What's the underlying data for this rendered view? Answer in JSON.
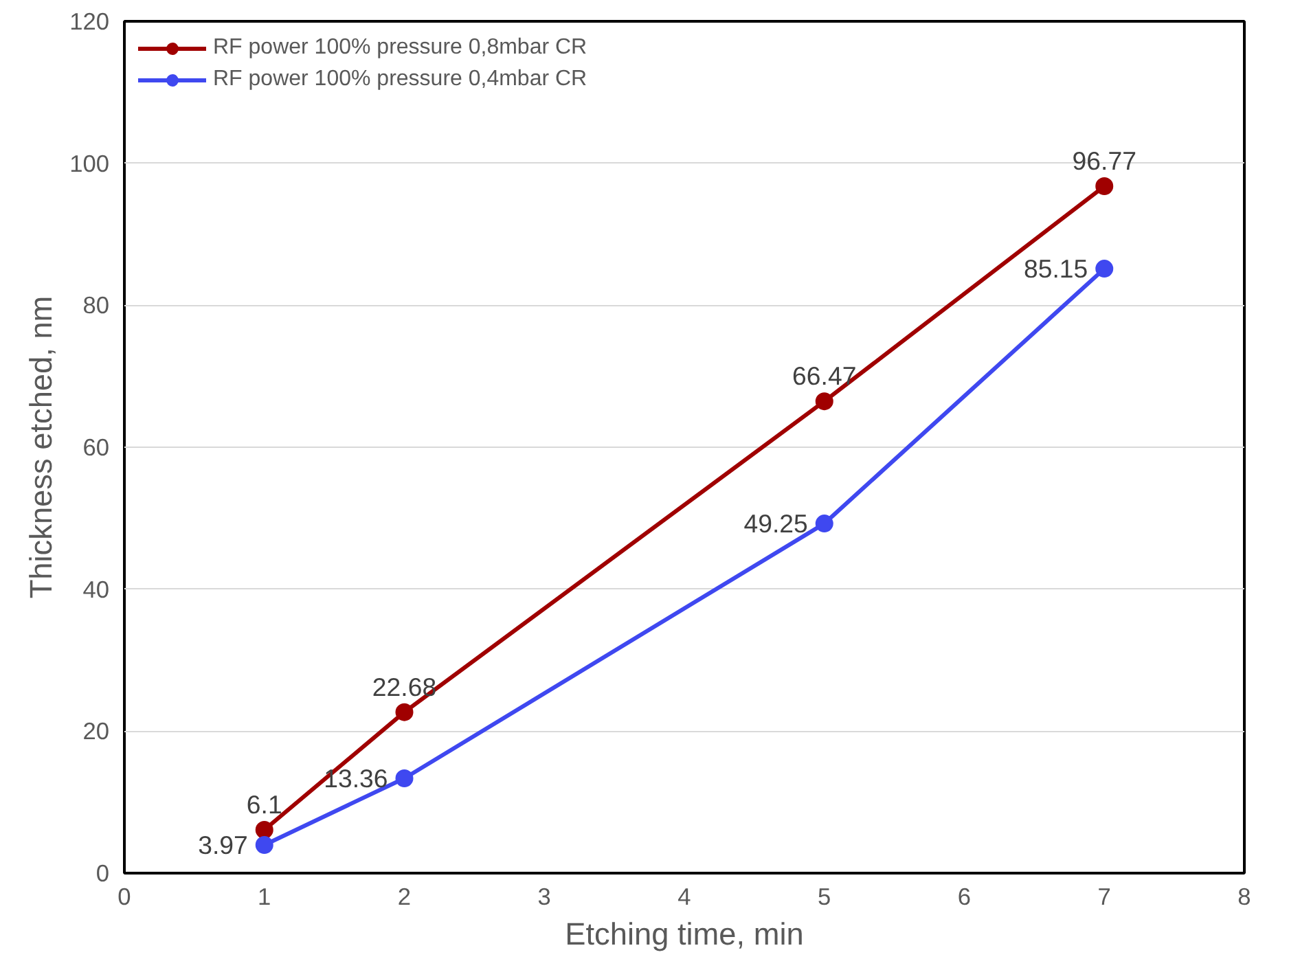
{
  "chart_data": {
    "type": "line",
    "xlabel": "Etching time, min",
    "ylabel": "Thickness etched, nm",
    "x": [
      1,
      2,
      5,
      7
    ],
    "series": [
      {
        "name": "RF power 100% pressure 0,8mbar CR",
        "color": "#a00000",
        "values": [
          6.1,
          22.68,
          66.47,
          96.77
        ]
      },
      {
        "name": "RF power 100% pressure 0,4mbar CR",
        "color": "#3f48f0",
        "values": [
          3.97,
          13.36,
          49.25,
          85.15
        ]
      }
    ],
    "xlim": [
      0,
      8
    ],
    "xticks": [
      0,
      1,
      2,
      3,
      4,
      5,
      6,
      7,
      8
    ],
    "ylim": [
      0,
      120
    ],
    "yticks": [
      0,
      20,
      40,
      60,
      80,
      100,
      120
    ],
    "grid": "y",
    "legend": "top left",
    "marker": "circle",
    "line_style": "solid",
    "data_labels": true
  }
}
